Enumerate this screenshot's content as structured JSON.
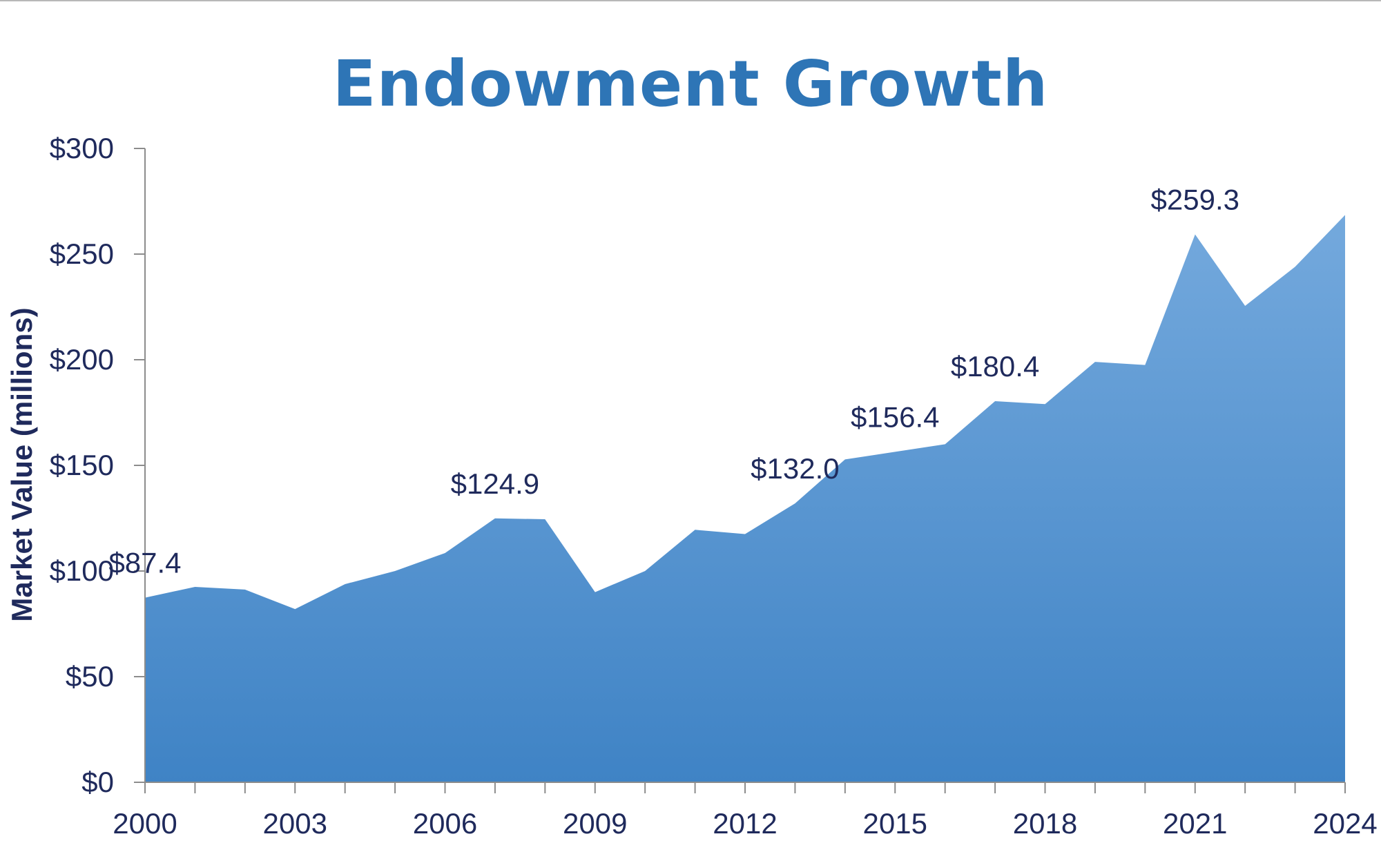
{
  "chart_data": {
    "type": "area",
    "title": "Endowment Growth",
    "xlabel": "",
    "ylabel": "Market Value (millions)",
    "x": [
      2000,
      2001,
      2002,
      2003,
      2004,
      2005,
      2006,
      2007,
      2008,
      2009,
      2010,
      2011,
      2012,
      2013,
      2014,
      2015,
      2016,
      2017,
      2018,
      2019,
      2020,
      2021,
      2022,
      2023,
      2024
    ],
    "values": [
      87.4,
      92.5,
      91.2,
      82,
      93.8,
      100,
      108.5,
      124.9,
      124.5,
      90,
      100,
      119.5,
      117.5,
      132.0,
      152.8,
      156.4,
      160,
      180.4,
      179,
      199,
      197.5,
      259.3,
      225.5,
      244,
      268.5
    ],
    "ylim": [
      0,
      300
    ],
    "y_ticks": [
      "$0",
      "$50",
      "$100",
      "$150",
      "$200",
      "$250",
      "$300"
    ],
    "y_tick_values": [
      0,
      50,
      100,
      150,
      200,
      250,
      300
    ],
    "x_tick_labels": [
      "2000",
      "2003",
      "2006",
      "2009",
      "2012",
      "2015",
      "2018",
      "2021",
      "2024"
    ],
    "data_labels": [
      {
        "x": 2000,
        "value": 87.4,
        "text": "$87.4"
      },
      {
        "x": 2007,
        "value": 124.9,
        "text": "$124.9"
      },
      {
        "x": 2013,
        "value": 132.0,
        "text": "$132.0"
      },
      {
        "x": 2015,
        "value": 156.4,
        "text": "$156.4"
      },
      {
        "x": 2017,
        "value": 180.4,
        "text": "$180.4"
      },
      {
        "x": 2021,
        "value": 259.3,
        "text": "$259.3"
      }
    ],
    "grid": false,
    "legend": "none",
    "colors": {
      "area_top": "#74a9dd",
      "area_bottom": "#3f83c5",
      "title": "#2e75b6",
      "text": "#1f2a5c",
      "axis": "#8c8c8c"
    }
  }
}
